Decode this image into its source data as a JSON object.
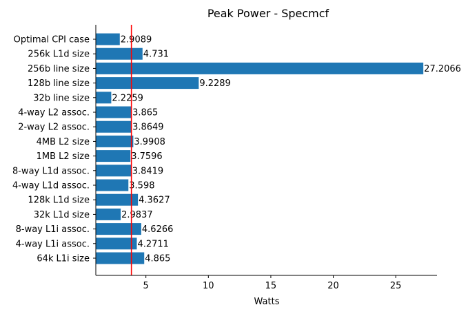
{
  "chart_data": {
    "type": "bar",
    "orientation": "horizontal",
    "title": "Peak Power - Specmcf",
    "xlabel": "Watts",
    "ylabel": "",
    "categories": [
      "Optimal CPI case",
      "256k L1d size",
      "256b line size",
      "128b line size",
      "32b line size",
      "4-way L2 assoc.",
      "2-way L2 assoc.",
      "4MB L2 size",
      "1MB L2 size",
      "8-way L1d assoc.",
      "4-way L1d assoc.",
      "128k L1d size",
      "32k L1d size",
      "8-way L1i assoc.",
      "4-way L1i assoc.",
      "64k L1i size"
    ],
    "values": [
      2.9089,
      4.731,
      27.2066,
      9.2289,
      2.2259,
      3.865,
      3.8649,
      3.9908,
      3.7596,
      3.8419,
      3.598,
      4.3627,
      2.9837,
      4.6266,
      4.2711,
      4.865
    ],
    "value_labels": [
      "2.9089",
      "4.731",
      "27.2066",
      "9.2289",
      "2.2259",
      "3.865",
      "3.8649",
      "3.9908",
      "3.7596",
      "3.8419",
      "3.598",
      "4.3627",
      "2.9837",
      "4.6266",
      "4.2711",
      "4.865"
    ],
    "xlim": [
      0.99,
      28.3
    ],
    "xticks": [
      5,
      10,
      15,
      20,
      25
    ],
    "xtick_labels": [
      "5",
      "10",
      "15",
      "20",
      "25"
    ],
    "reference_line": {
      "x": 3.84,
      "color": "#ff0000"
    },
    "bar_color": "#1f77b4",
    "grid": false,
    "legend": "none"
  }
}
